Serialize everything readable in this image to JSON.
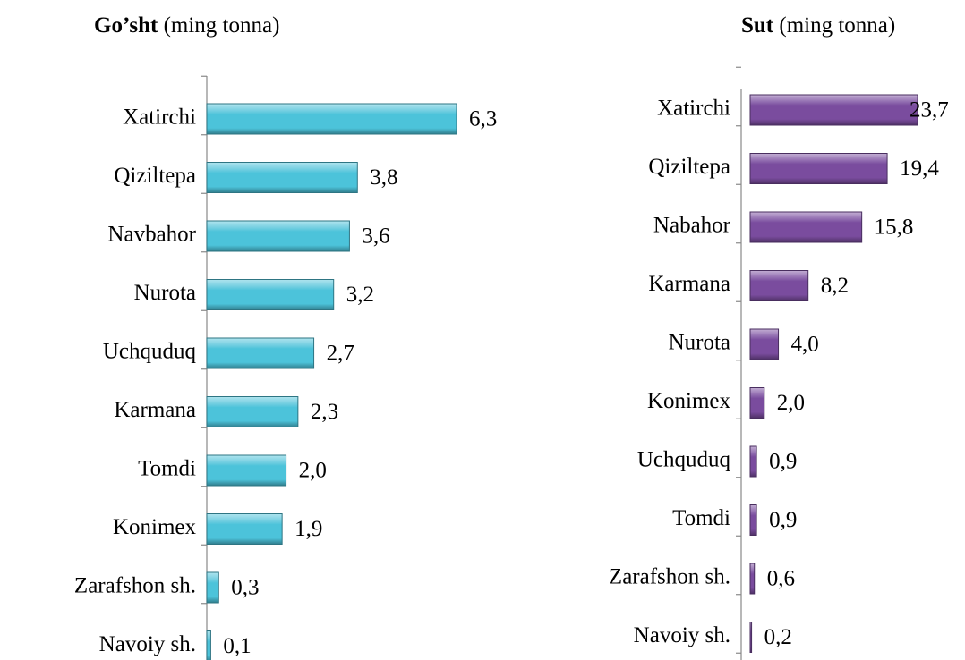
{
  "chart_data": [
    {
      "type": "bar",
      "title": "Go’sht",
      "unit": "(ming  tonna)",
      "color": "#4cc3da",
      "categories": [
        "Xatirchi",
        "Qiziltepa",
        "Navbahor",
        "Nurota",
        "Uchquduq",
        "Karmana",
        "Tomdi",
        "Konimex",
        "Zarafshon sh.",
        "Navoiy sh."
      ],
      "values": [
        6.3,
        3.8,
        3.6,
        3.2,
        2.7,
        2.3,
        2.0,
        1.9,
        0.3,
        0.1
      ],
      "value_labels": [
        "6,3",
        "3,8",
        "3,6",
        "3,2",
        "2,7",
        "2,3",
        "2,0",
        "1,9",
        "0,3",
        "0,1"
      ]
    },
    {
      "type": "bar",
      "title": "Sut",
      "unit": "(ming  tonna)",
      "color": "#7a4c9e",
      "categories": [
        "Xatirchi",
        "Qiziltepa",
        "Nabahor",
        "Karmana",
        "Nurota",
        "Konimex",
        "Uchquduq",
        "Tomdi",
        "Zarafshon sh.",
        "Navoiy sh."
      ],
      "values": [
        23.7,
        19.4,
        15.8,
        8.2,
        4.0,
        2.0,
        0.9,
        0.9,
        0.6,
        0.2
      ],
      "value_labels": [
        "23,7",
        "19,4",
        "15,8",
        "8,2",
        "4,0",
        "2,0",
        "0,9",
        "0,9",
        "0,6",
        "0,2"
      ]
    }
  ]
}
